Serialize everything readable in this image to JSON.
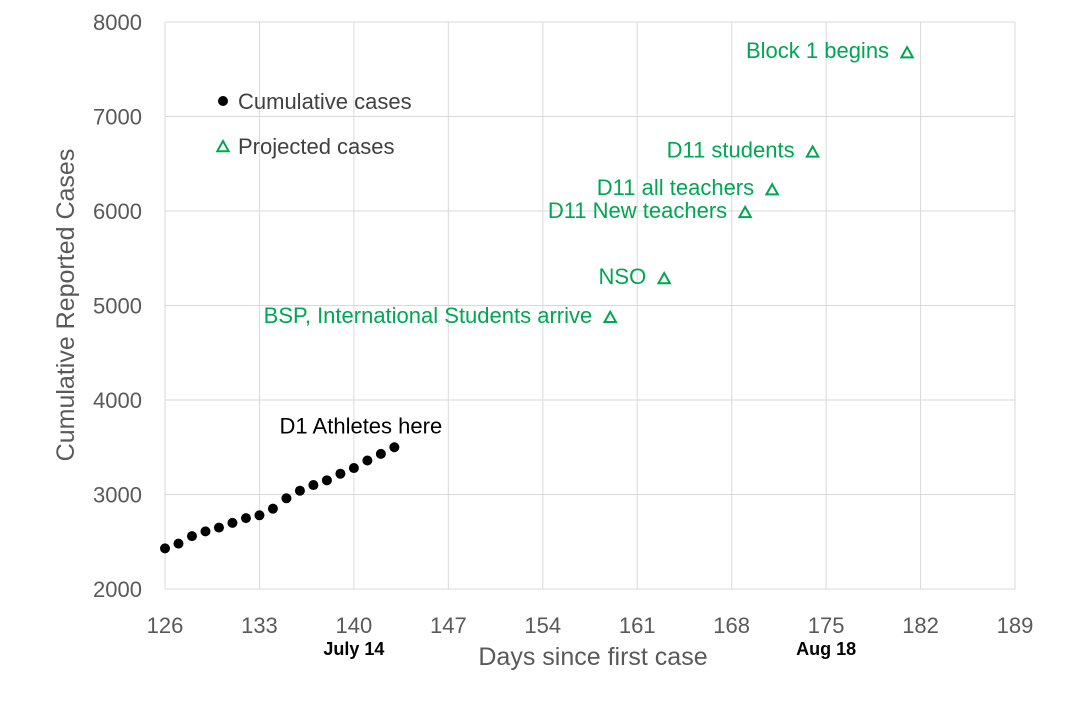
{
  "chart_data": {
    "type": "scatter",
    "title": "",
    "xlabel": "Days since first case",
    "ylabel": "Cumulative Reported Cases",
    "xlim": [
      126,
      189
    ],
    "ylim": [
      2000,
      8000
    ],
    "x_ticks": [
      126,
      133,
      140,
      147,
      154,
      161,
      168,
      175,
      182,
      189
    ],
    "y_ticks": [
      2000,
      3000,
      4000,
      5000,
      6000,
      7000,
      8000
    ],
    "grid": true,
    "legend_position": "top-left",
    "colors": {
      "cumulative": "#000000",
      "projected": "#00a651",
      "grid": "#d9d9d9",
      "text": "#595959"
    },
    "series": [
      {
        "name": "Cumulative cases",
        "marker": "circle",
        "x": [
          126,
          127,
          128,
          129,
          130,
          131,
          132,
          133,
          134,
          135,
          136,
          137,
          138,
          139,
          140,
          141,
          142,
          143
        ],
        "y": [
          2430,
          2480,
          2560,
          2610,
          2650,
          2700,
          2750,
          2780,
          2850,
          2960,
          3040,
          3100,
          3150,
          3220,
          3280,
          3360,
          3430,
          3500
        ]
      },
      {
        "name": "Projected cases",
        "marker": "triangle-open",
        "x": [
          159,
          163,
          169,
          171,
          174,
          181
        ],
        "y": [
          4870,
          5280,
          5980,
          6220,
          6620,
          7670
        ]
      }
    ],
    "annotations": [
      {
        "text": "BSP, International Students arrive",
        "point_index": 0,
        "color": "projected"
      },
      {
        "text": "NSO",
        "point_index": 1,
        "color": "projected"
      },
      {
        "text": "D11 New teachers",
        "point_index": 2,
        "color": "projected"
      },
      {
        "text": "D11 all teachers",
        "point_index": 3,
        "color": "projected"
      },
      {
        "text": "D11 students",
        "point_index": 4,
        "color": "projected"
      },
      {
        "text": "Block 1 begins",
        "point_index": 5,
        "color": "projected"
      },
      {
        "text": "D1 Athletes here",
        "x": 142,
        "color": "cumulative"
      }
    ],
    "date_labels": [
      {
        "text": "July 14",
        "x": 140
      },
      {
        "text": "Aug 18",
        "x": 175
      }
    ]
  }
}
